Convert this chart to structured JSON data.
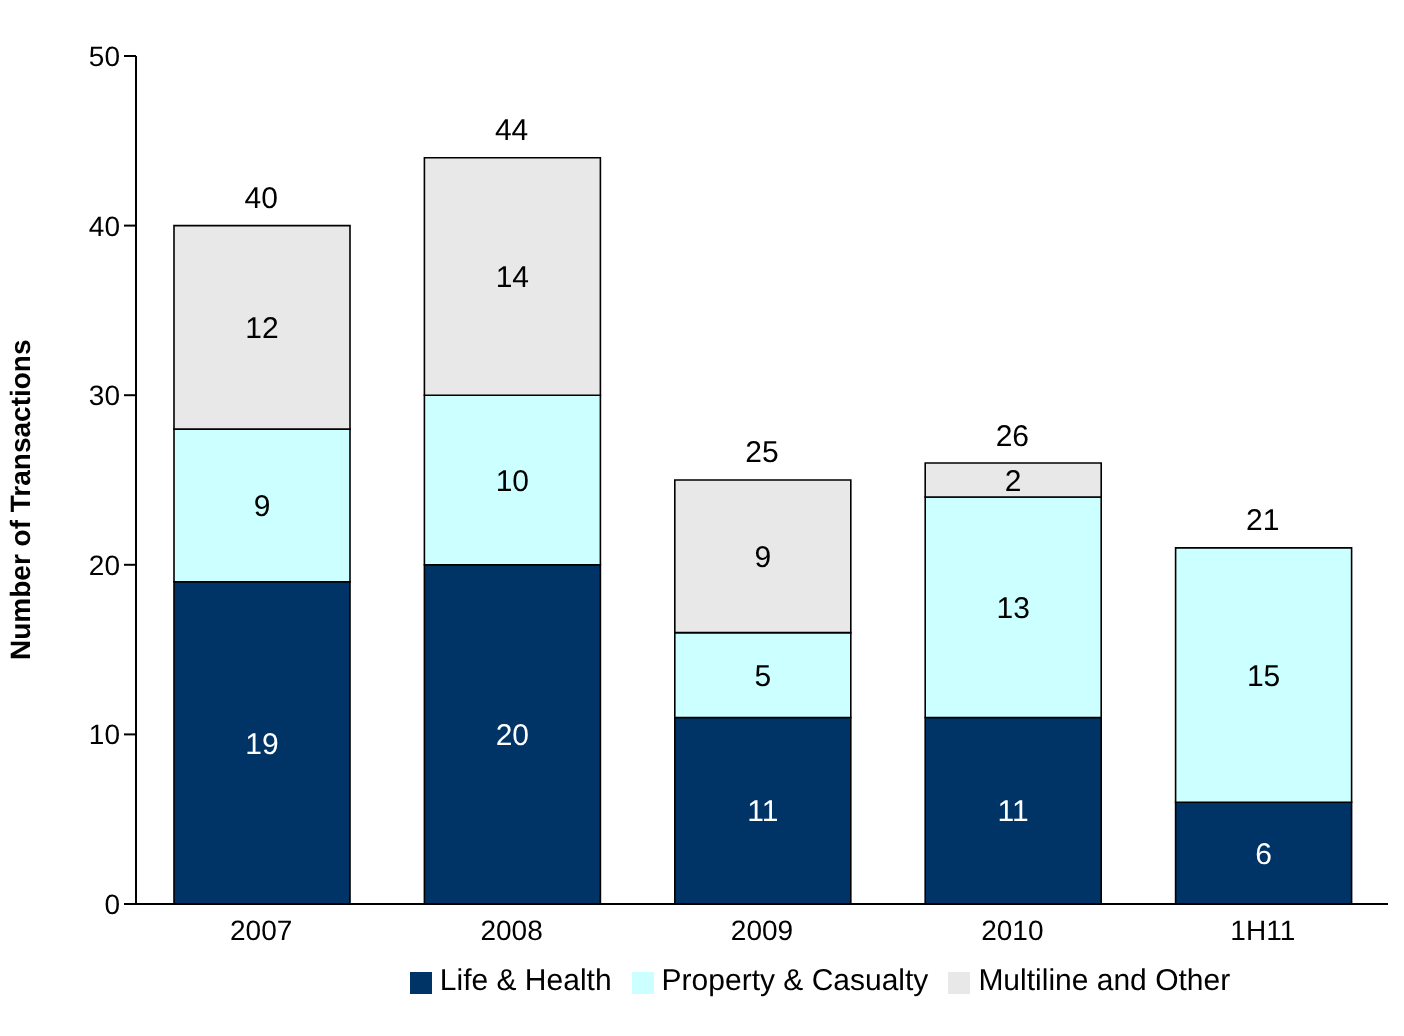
{
  "chart_data": {
    "type": "bar",
    "stacked": true,
    "ylabel": "Number of Transactions",
    "categories": [
      "2007",
      "2008",
      "2009",
      "2010",
      "1H11"
    ],
    "series": [
      {
        "name": "Life & Health",
        "color": "#003366",
        "values": [
          19,
          20,
          11,
          11,
          6
        ]
      },
      {
        "name": "Property & Casualty",
        "color": "#ccffff",
        "values": [
          9,
          10,
          5,
          13,
          15
        ]
      },
      {
        "name": "Multiline and Other",
        "color": "#e8e8e8",
        "values": [
          12,
          14,
          9,
          2,
          null
        ]
      }
    ],
    "ylim": [
      0,
      50
    ],
    "yticks": [
      0,
      10,
      20,
      30,
      40,
      50
    ],
    "legend": "bottom",
    "data_labels": true,
    "totals": [
      "40",
      "44",
      "25",
      "26",
      "21"
    ]
  }
}
